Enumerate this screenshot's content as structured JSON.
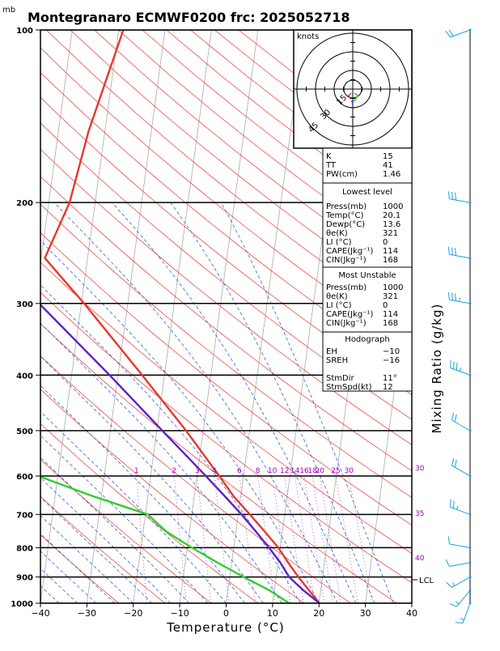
{
  "header": {
    "unit_mb": "mb",
    "title": "Montegranaro ECMWF0200 frc: 2025052718"
  },
  "chart_data": {
    "type": "skew-t",
    "xlabel": "Temperature (°C)",
    "mixing_ratio_label": "Mixing Ratio (g/kg)",
    "x_ticks": [
      -40,
      -30,
      -20,
      -10,
      0,
      10,
      20,
      30,
      40
    ],
    "x_tick_labels": [
      "−40",
      "−30",
      "−20",
      "−10",
      "0",
      "10",
      "20",
      "30",
      "40"
    ],
    "p_levels": [
      100,
      200,
      300,
      400,
      500,
      600,
      700,
      800,
      900,
      1000
    ],
    "p_level_labels": [
      "100",
      "200",
      "300",
      "400",
      "500",
      "600",
      "700",
      "800",
      "900",
      "1000"
    ],
    "xlim": [
      -40,
      40
    ],
    "plim": [
      1000,
      100
    ],
    "mixing_ratios": [
      1,
      2,
      3,
      4,
      6,
      8,
      10,
      12,
      14,
      16,
      18,
      20,
      25,
      30
    ],
    "mixing_ratio_labels": [
      "1",
      "2",
      "3",
      "4",
      "6",
      "8",
      "10",
      "12",
      "14",
      "16",
      "18",
      "20",
      "25",
      "30"
    ],
    "right_purple_labels": [
      "30",
      "35",
      "40"
    ],
    "lcl_label": "LCL",
    "series": [
      {
        "name": "",
        "color": "#e8382e",
        "p": [
          1000,
          950,
          900,
          850,
          800,
          750,
          700,
          650,
          600,
          500,
          400,
          300,
          250,
          200,
          150,
          100
        ],
        "t": [
          20.1,
          17.5,
          14.8,
          12.2,
          9.6,
          6.2,
          2.5,
          -1.6,
          -5.2,
          -13.7,
          -24.8,
          -39.4,
          -49.2,
          -45.5,
          -43.5,
          -39
        ]
      },
      {
        "name": "",
        "color": "#2ecf2e",
        "p": [
          1000,
          950,
          900,
          850,
          800,
          750,
          700,
          650,
          600,
          500,
          400,
          300,
          250,
          200,
          150,
          100
        ],
        "t": [
          13.6,
          9,
          3,
          -3,
          -9,
          -15,
          -19.5,
          -32,
          -44.2,
          -50,
          -50.3,
          -65,
          -77,
          -80,
          -85,
          -91.5
        ]
      },
      {
        "name": "",
        "color": "#5a22c8",
        "p": [
          1000,
          950,
          900,
          850,
          800,
          750,
          700,
          650,
          600,
          500,
          400,
          300,
          250,
          200,
          150,
          100
        ],
        "t": [
          20.1,
          16.3,
          12.8,
          10.5,
          7.6,
          4.3,
          0.7,
          -3.5,
          -8.1,
          -18.8,
          -31.8,
          -49.1,
          -60,
          -72.5,
          -87.5,
          -106
        ]
      }
    ],
    "hodograph": {
      "unit": "knots",
      "ring_labels": [
        "15",
        "30",
        "45"
      ]
    },
    "wind_profile": [
      {
        "p": 1000,
        "dir": 200,
        "spd": 5
      },
      {
        "p": 950,
        "dir": 220,
        "spd": 5
      },
      {
        "p": 900,
        "dir": 240,
        "spd": 8
      },
      {
        "p": 850,
        "dir": 260,
        "spd": 10
      },
      {
        "p": 800,
        "dir": 280,
        "spd": 12
      },
      {
        "p": 700,
        "dir": 290,
        "spd": 15
      },
      {
        "p": 600,
        "dir": 300,
        "spd": 20
      },
      {
        "p": 500,
        "dir": 300,
        "spd": 20
      },
      {
        "p": 400,
        "dir": 290,
        "spd": 25
      },
      {
        "p": 300,
        "dir": 280,
        "spd": 25
      },
      {
        "p": 250,
        "dir": 280,
        "spd": 30
      },
      {
        "p": 200,
        "dir": 280,
        "spd": 30
      },
      {
        "p": 100,
        "dir": 250,
        "spd": 20
      }
    ]
  },
  "indices": {
    "top": [
      {
        "label": "K",
        "value": "15"
      },
      {
        "label": "TT",
        "value": "41"
      },
      {
        "label": "PW(cm)",
        "value": "1.46"
      }
    ],
    "lowest_title": "Lowest level",
    "lowest": [
      {
        "label": "Press(mb)",
        "value": "1000"
      },
      {
        "label": "Temp(°C)",
        "value": "20.1"
      },
      {
        "label": "Dewp(°C)",
        "value": "13.6"
      },
      {
        "label": "θe(K)",
        "value": "321"
      },
      {
        "label": "LI (°C)",
        "value": "0"
      },
      {
        "label": "CAPE(Jkg⁻¹)",
        "value": "114"
      },
      {
        "label": "CIN(Jkg⁻¹)",
        "value": "168"
      }
    ],
    "unstable_title": "Most Unstable",
    "unstable": [
      {
        "label": "Press(mb)",
        "value": "1000"
      },
      {
        "label": "θe(K)",
        "value": "321"
      },
      {
        "label": "LI (°C)",
        "value": "0"
      },
      {
        "label": "CAPE(Jkg⁻¹)",
        "value": "114"
      },
      {
        "label": "CIN(Jkg⁻¹)",
        "value": "168"
      }
    ],
    "hodo_title": "Hodograph",
    "hodo": [
      {
        "label": "EH",
        "value": "−10"
      },
      {
        "label": "SREH",
        "value": "−16"
      },
      {
        "label": "",
        "value": ""
      },
      {
        "label": "StmDir",
        "value": "11°"
      },
      {
        "label": "StmSpd(kt)",
        "value": "12"
      }
    ]
  }
}
